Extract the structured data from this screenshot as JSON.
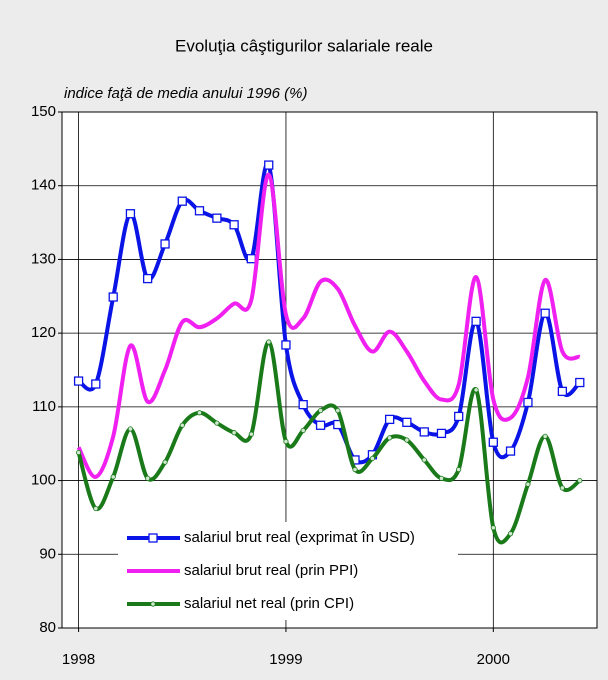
{
  "chart_data": {
    "type": "line",
    "title": "Evoluţia câştigurilor salariale reale",
    "subtitle": "indice faţă de media anului 1996 (%)",
    "x": [
      1998,
      1998.083,
      1998.167,
      1998.25,
      1998.333,
      1998.417,
      1998.5,
      1998.583,
      1998.667,
      1998.75,
      1998.833,
      1998.917,
      1999,
      1999.083,
      1999.167,
      1999.25,
      1999.333,
      1999.417,
      1999.5,
      1999.583,
      1999.667,
      1999.75,
      1999.833,
      1999.917,
      2000,
      2000.083,
      2000.167,
      2000.25,
      2000.333,
      2000.417
    ],
    "series": [
      {
        "name": "salariul brut real (exprimat în USD)",
        "color": "#0a14e6",
        "marker": "square",
        "values": [
          113.5,
          113.1,
          124.9,
          136.2,
          127.4,
          132.1,
          137.9,
          136.6,
          135.6,
          134.7,
          130.1,
          142.8,
          118.4,
          110.3,
          107.5,
          107.6,
          102.8,
          103.5,
          108.3,
          107.9,
          106.6,
          106.4,
          108.7,
          121.6,
          105.2,
          104,
          110.6,
          122.7,
          112.1,
          113.3
        ]
      },
      {
        "name": "salariul brut real (prin PPI)",
        "color": "#f020f0",
        "marker": "none",
        "values": [
          104.5,
          100.5,
          106,
          118.3,
          110.7,
          115,
          121.5,
          120.8,
          122,
          124,
          124.5,
          141.5,
          122.5,
          122,
          127,
          126,
          121,
          117.5,
          120.2,
          117.5,
          113.5,
          111,
          113,
          127.6,
          111,
          108.5,
          114,
          127.2,
          117.5,
          116.8
        ]
      },
      {
        "name": "salariul net real (prin CPI)",
        "color": "#1a7a1a",
        "marker": "dot",
        "values": [
          103.8,
          96.2,
          100.5,
          107,
          100.3,
          102.5,
          107.5,
          109.2,
          107.8,
          106.5,
          106.3,
          118.8,
          105.3,
          106.8,
          109.5,
          109.5,
          101.5,
          103,
          105.8,
          105.5,
          102.8,
          100.3,
          101.5,
          112.3,
          93.6,
          92.8,
          99.5,
          106,
          99,
          100
        ]
      }
    ],
    "xlim": [
      1997.92,
      2000.5
    ],
    "xticks": [
      1998,
      1999,
      2000
    ],
    "ylim": [
      80,
      150
    ],
    "yticks": [
      80,
      90,
      100,
      110,
      120,
      130,
      140,
      150
    ],
    "grid": true,
    "legend": "lower left"
  }
}
